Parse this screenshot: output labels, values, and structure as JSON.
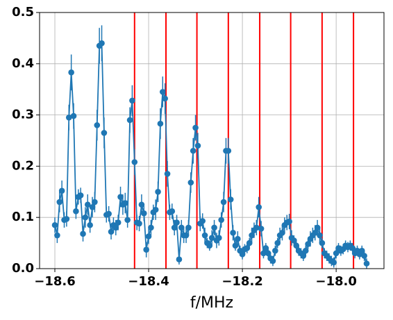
{
  "chart_data": {
    "type": "errorbar-line",
    "xlabel": "f/MHz",
    "color": "#1f77b4",
    "vline_color": "#ff0000",
    "grid": true,
    "xlim": [
      -18.6326,
      -17.898
    ],
    "ylim": [
      0,
      0.5
    ],
    "xticks": [
      {
        "value": -18.6,
        "label": "−18.6"
      },
      {
        "value": -18.4,
        "label": "−18.4"
      },
      {
        "value": -18.2,
        "label": "−18.2"
      },
      {
        "value": -18.0,
        "label": "−18.0"
      }
    ],
    "yticks": [
      {
        "value": 0,
        "label": "0.0"
      },
      0.1,
      0.2,
      0.3,
      0.4,
      0.5
    ],
    "vlines": [
      -18.43,
      -18.363,
      -18.297,
      -18.23,
      -18.163,
      -18.097,
      -18.03,
      -17.963
    ],
    "x": [
      -18.6,
      -18.595,
      -18.59,
      -18.585,
      -18.58,
      -18.575,
      -18.57,
      -18.565,
      -18.56,
      -18.555,
      -18.55,
      -18.545,
      -18.54,
      -18.535,
      -18.53,
      -18.525,
      -18.52,
      -18.515,
      -18.51,
      -18.505,
      -18.5,
      -18.495,
      -18.49,
      -18.485,
      -18.48,
      -18.475,
      -18.47,
      -18.465,
      -18.46,
      -18.455,
      -18.45,
      -18.445,
      -18.44,
      -18.435,
      -18.43,
      -18.425,
      -18.42,
      -18.415,
      -18.41,
      -18.405,
      -18.4,
      -18.395,
      -18.39,
      -18.385,
      -18.38,
      -18.375,
      -18.37,
      -18.365,
      -18.36,
      -18.355,
      -18.35,
      -18.345,
      -18.34,
      -18.335,
      -18.33,
      -18.325,
      -18.32,
      -18.315,
      -18.31,
      -18.305,
      -18.3,
      -18.295,
      -18.29,
      -18.285,
      -18.28,
      -18.275,
      -18.27,
      -18.265,
      -18.26,
      -18.255,
      -18.25,
      -18.245,
      -18.24,
      -18.235,
      -18.23,
      -18.225,
      -18.22,
      -18.215,
      -18.21,
      -18.205,
      -18.2,
      -18.195,
      -18.19,
      -18.185,
      -18.18,
      -18.175,
      -18.17,
      -18.165,
      -18.16,
      -18.155,
      -18.15,
      -18.145,
      -18.14,
      -18.135,
      -18.13,
      -18.125,
      -18.12,
      -18.115,
      -18.11,
      -18.105,
      -18.1,
      -18.095,
      -18.09,
      -18.085,
      -18.08,
      -18.075,
      -18.07,
      -18.065,
      -18.06,
      -18.055,
      -18.05,
      -18.045,
      -18.04,
      -18.035,
      -18.03,
      -18.025,
      -18.02,
      -18.015,
      -18.01,
      -18.005,
      -18.0,
      -17.995,
      -17.99,
      -17.985,
      -17.98,
      -17.975,
      -17.97,
      -17.965,
      -17.96,
      -17.955,
      -17.95,
      -17.945,
      -17.94,
      -17.935
    ],
    "values": [
      0.085,
      0.065,
      0.13,
      0.152,
      0.095,
      0.097,
      0.295,
      0.383,
      0.298,
      0.112,
      0.14,
      0.143,
      0.068,
      0.1,
      0.125,
      0.085,
      0.12,
      0.13,
      0.28,
      0.435,
      0.44,
      0.265,
      0.105,
      0.107,
      0.072,
      0.085,
      0.08,
      0.09,
      0.14,
      0.125,
      0.128,
      0.095,
      0.29,
      0.328,
      0.208,
      0.09,
      0.088,
      0.125,
      0.108,
      0.037,
      0.063,
      0.08,
      0.11,
      0.115,
      0.15,
      0.283,
      0.345,
      0.332,
      0.185,
      0.11,
      0.112,
      0.08,
      0.09,
      0.018,
      0.08,
      0.065,
      0.065,
      0.08,
      0.168,
      0.23,
      0.275,
      0.24,
      0.088,
      0.093,
      0.065,
      0.05,
      0.045,
      0.06,
      0.08,
      0.055,
      0.06,
      0.095,
      0.13,
      0.23,
      0.23,
      0.135,
      0.07,
      0.045,
      0.058,
      0.035,
      0.028,
      0.038,
      0.04,
      0.05,
      0.065,
      0.075,
      0.08,
      0.12,
      0.078,
      0.03,
      0.04,
      0.03,
      0.02,
      0.015,
      0.035,
      0.05,
      0.065,
      0.07,
      0.085,
      0.09,
      0.092,
      0.06,
      0.055,
      0.045,
      0.035,
      0.03,
      0.025,
      0.035,
      0.048,
      0.058,
      0.065,
      0.07,
      0.08,
      0.065,
      0.05,
      0.03,
      0.025,
      0.02,
      0.015,
      0.012,
      0.03,
      0.04,
      0.035,
      0.038,
      0.045,
      0.042,
      0.045,
      0.04,
      0.03,
      0.035,
      0.028,
      0.035,
      0.025,
      0.01
    ],
    "errors": [
      0.015,
      0.015,
      0.02,
      0.02,
      0.015,
      0.015,
      0.025,
      0.035,
      0.025,
      0.015,
      0.015,
      0.015,
      0.015,
      0.02,
      0.02,
      0.015,
      0.02,
      0.02,
      0.03,
      0.035,
      0.035,
      0.03,
      0.015,
      0.015,
      0.015,
      0.015,
      0.015,
      0.015,
      0.02,
      0.02,
      0.02,
      0.015,
      0.025,
      0.03,
      0.025,
      0.015,
      0.015,
      0.02,
      0.015,
      0.015,
      0.015,
      0.015,
      0.015,
      0.02,
      0.02,
      0.03,
      0.03,
      0.03,
      0.025,
      0.015,
      0.015,
      0.015,
      0.015,
      0.01,
      0.015,
      0.015,
      0.015,
      0.015,
      0.02,
      0.025,
      0.025,
      0.025,
      0.015,
      0.015,
      0.015,
      0.01,
      0.01,
      0.015,
      0.015,
      0.015,
      0.015,
      0.015,
      0.02,
      0.025,
      0.025,
      0.02,
      0.015,
      0.01,
      0.015,
      0.01,
      0.01,
      0.01,
      0.01,
      0.01,
      0.015,
      0.015,
      0.015,
      0.02,
      0.015,
      0.01,
      0.01,
      0.01,
      0.01,
      0.01,
      0.01,
      0.01,
      0.015,
      0.015,
      0.015,
      0.015,
      0.015,
      0.015,
      0.01,
      0.01,
      0.01,
      0.01,
      0.01,
      0.01,
      0.01,
      0.015,
      0.015,
      0.015,
      0.015,
      0.015,
      0.01,
      0.01,
      0.01,
      0.01,
      0.01,
      0.01,
      0.01,
      0.01,
      0.01,
      0.01,
      0.01,
      0.01,
      0.01,
      0.01,
      0.01,
      0.01,
      0.01,
      0.01,
      0.01,
      0.01
    ]
  }
}
